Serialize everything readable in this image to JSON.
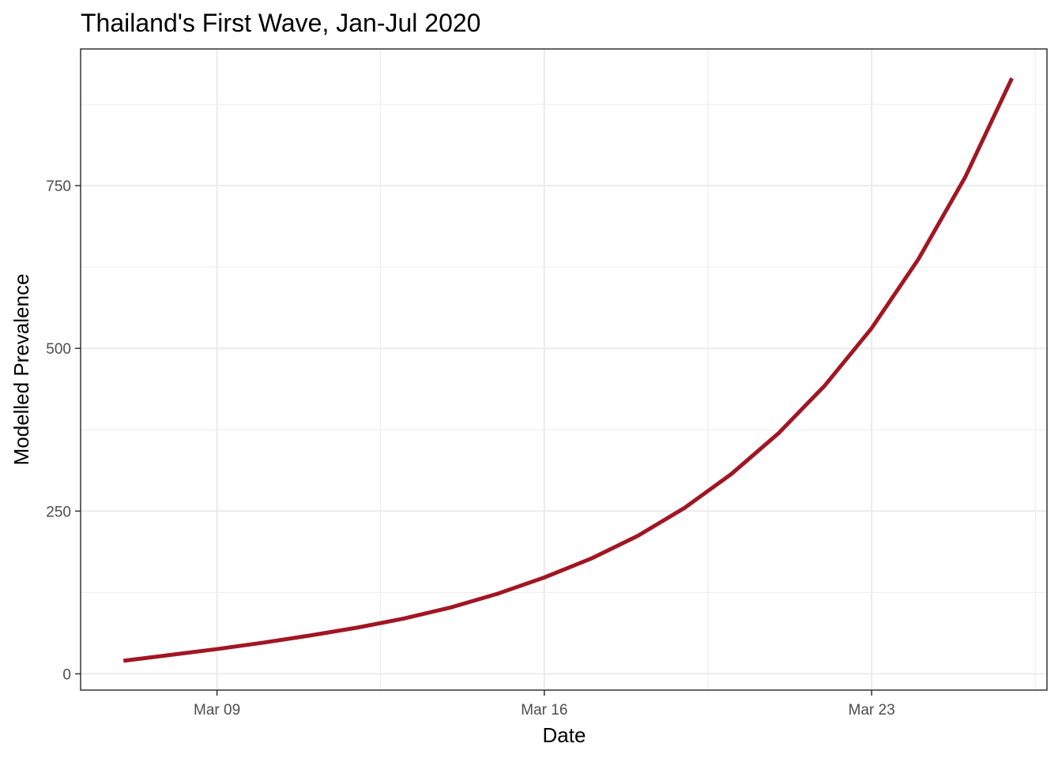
{
  "chart_data": {
    "type": "line",
    "title": "Thailand's First Wave, Jan-Jul 2020",
    "xlabel": "Date",
    "ylabel": "Modelled Prevalence",
    "x_ticks": [
      {
        "date": "2020-03-09",
        "label": "Mar 09"
      },
      {
        "date": "2020-03-16",
        "label": "Mar 16"
      },
      {
        "date": "2020-03-23",
        "label": "Mar 23"
      }
    ],
    "y_ticks": [
      0,
      250,
      500,
      750
    ],
    "xlim": [
      "2020-03-06T02:00",
      "2020-03-26T18:00"
    ],
    "ylim": [
      -25,
      960
    ],
    "grid": true,
    "legend": "none",
    "series": [
      {
        "color": "#a11623",
        "points": [
          {
            "x": "2020-03-07",
            "y": 20
          },
          {
            "x": "2020-03-08",
            "y": 29
          },
          {
            "x": "2020-03-09",
            "y": 38
          },
          {
            "x": "2020-03-10",
            "y": 48
          },
          {
            "x": "2020-03-11",
            "y": 59
          },
          {
            "x": "2020-03-12",
            "y": 71
          },
          {
            "x": "2020-03-13",
            "y": 85
          },
          {
            "x": "2020-03-14",
            "y": 102
          },
          {
            "x": "2020-03-15",
            "y": 123
          },
          {
            "x": "2020-03-16",
            "y": 148
          },
          {
            "x": "2020-03-17",
            "y": 177
          },
          {
            "x": "2020-03-18",
            "y": 212
          },
          {
            "x": "2020-03-19",
            "y": 255
          },
          {
            "x": "2020-03-20",
            "y": 307
          },
          {
            "x": "2020-03-21",
            "y": 369
          },
          {
            "x": "2020-03-22",
            "y": 443
          },
          {
            "x": "2020-03-23",
            "y": 531
          },
          {
            "x": "2020-03-24",
            "y": 637
          },
          {
            "x": "2020-03-25",
            "y": 763
          },
          {
            "x": "2020-03-26",
            "y": 915
          }
        ]
      }
    ]
  }
}
